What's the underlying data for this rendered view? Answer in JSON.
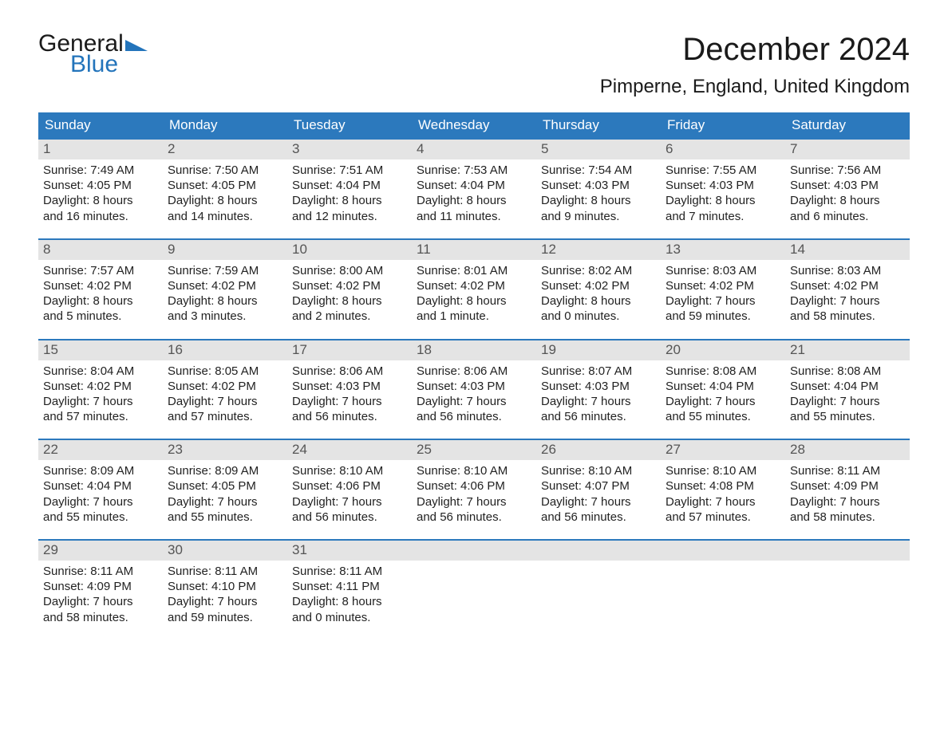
{
  "logo": {
    "line1": "General",
    "line2": "Blue"
  },
  "title": "December 2024",
  "location": "Pimperne, England, United Kingdom",
  "colors": {
    "header_bg": "#2c79bd",
    "header_text": "#ffffff",
    "daynum_bg": "#e4e4e4",
    "daynum_text": "#555555",
    "week_border": "#2c79bd",
    "body_text": "#222222",
    "page_bg": "#ffffff",
    "logo_blue": "#2374bb"
  },
  "weekdays": [
    "Sunday",
    "Monday",
    "Tuesday",
    "Wednesday",
    "Thursday",
    "Friday",
    "Saturday"
  ],
  "weeks": [
    [
      {
        "n": "1",
        "sr": "7:49 AM",
        "ss": "4:05 PM",
        "dl1": "Daylight: 8 hours",
        "dl2": "and 16 minutes."
      },
      {
        "n": "2",
        "sr": "7:50 AM",
        "ss": "4:05 PM",
        "dl1": "Daylight: 8 hours",
        "dl2": "and 14 minutes."
      },
      {
        "n": "3",
        "sr": "7:51 AM",
        "ss": "4:04 PM",
        "dl1": "Daylight: 8 hours",
        "dl2": "and 12 minutes."
      },
      {
        "n": "4",
        "sr": "7:53 AM",
        "ss": "4:04 PM",
        "dl1": "Daylight: 8 hours",
        "dl2": "and 11 minutes."
      },
      {
        "n": "5",
        "sr": "7:54 AM",
        "ss": "4:03 PM",
        "dl1": "Daylight: 8 hours",
        "dl2": "and 9 minutes."
      },
      {
        "n": "6",
        "sr": "7:55 AM",
        "ss": "4:03 PM",
        "dl1": "Daylight: 8 hours",
        "dl2": "and 7 minutes."
      },
      {
        "n": "7",
        "sr": "7:56 AM",
        "ss": "4:03 PM",
        "dl1": "Daylight: 8 hours",
        "dl2": "and 6 minutes."
      }
    ],
    [
      {
        "n": "8",
        "sr": "7:57 AM",
        "ss": "4:02 PM",
        "dl1": "Daylight: 8 hours",
        "dl2": "and 5 minutes."
      },
      {
        "n": "9",
        "sr": "7:59 AM",
        "ss": "4:02 PM",
        "dl1": "Daylight: 8 hours",
        "dl2": "and 3 minutes."
      },
      {
        "n": "10",
        "sr": "8:00 AM",
        "ss": "4:02 PM",
        "dl1": "Daylight: 8 hours",
        "dl2": "and 2 minutes."
      },
      {
        "n": "11",
        "sr": "8:01 AM",
        "ss": "4:02 PM",
        "dl1": "Daylight: 8 hours",
        "dl2": "and 1 minute."
      },
      {
        "n": "12",
        "sr": "8:02 AM",
        "ss": "4:02 PM",
        "dl1": "Daylight: 8 hours",
        "dl2": "and 0 minutes."
      },
      {
        "n": "13",
        "sr": "8:03 AM",
        "ss": "4:02 PM",
        "dl1": "Daylight: 7 hours",
        "dl2": "and 59 minutes."
      },
      {
        "n": "14",
        "sr": "8:03 AM",
        "ss": "4:02 PM",
        "dl1": "Daylight: 7 hours",
        "dl2": "and 58 minutes."
      }
    ],
    [
      {
        "n": "15",
        "sr": "8:04 AM",
        "ss": "4:02 PM",
        "dl1": "Daylight: 7 hours",
        "dl2": "and 57 minutes."
      },
      {
        "n": "16",
        "sr": "8:05 AM",
        "ss": "4:02 PM",
        "dl1": "Daylight: 7 hours",
        "dl2": "and 57 minutes."
      },
      {
        "n": "17",
        "sr": "8:06 AM",
        "ss": "4:03 PM",
        "dl1": "Daylight: 7 hours",
        "dl2": "and 56 minutes."
      },
      {
        "n": "18",
        "sr": "8:06 AM",
        "ss": "4:03 PM",
        "dl1": "Daylight: 7 hours",
        "dl2": "and 56 minutes."
      },
      {
        "n": "19",
        "sr": "8:07 AM",
        "ss": "4:03 PM",
        "dl1": "Daylight: 7 hours",
        "dl2": "and 56 minutes."
      },
      {
        "n": "20",
        "sr": "8:08 AM",
        "ss": "4:04 PM",
        "dl1": "Daylight: 7 hours",
        "dl2": "and 55 minutes."
      },
      {
        "n": "21",
        "sr": "8:08 AM",
        "ss": "4:04 PM",
        "dl1": "Daylight: 7 hours",
        "dl2": "and 55 minutes."
      }
    ],
    [
      {
        "n": "22",
        "sr": "8:09 AM",
        "ss": "4:04 PM",
        "dl1": "Daylight: 7 hours",
        "dl2": "and 55 minutes."
      },
      {
        "n": "23",
        "sr": "8:09 AM",
        "ss": "4:05 PM",
        "dl1": "Daylight: 7 hours",
        "dl2": "and 55 minutes."
      },
      {
        "n": "24",
        "sr": "8:10 AM",
        "ss": "4:06 PM",
        "dl1": "Daylight: 7 hours",
        "dl2": "and 56 minutes."
      },
      {
        "n": "25",
        "sr": "8:10 AM",
        "ss": "4:06 PM",
        "dl1": "Daylight: 7 hours",
        "dl2": "and 56 minutes."
      },
      {
        "n": "26",
        "sr": "8:10 AM",
        "ss": "4:07 PM",
        "dl1": "Daylight: 7 hours",
        "dl2": "and 56 minutes."
      },
      {
        "n": "27",
        "sr": "8:10 AM",
        "ss": "4:08 PM",
        "dl1": "Daylight: 7 hours",
        "dl2": "and 57 minutes."
      },
      {
        "n": "28",
        "sr": "8:11 AM",
        "ss": "4:09 PM",
        "dl1": "Daylight: 7 hours",
        "dl2": "and 58 minutes."
      }
    ],
    [
      {
        "n": "29",
        "sr": "8:11 AM",
        "ss": "4:09 PM",
        "dl1": "Daylight: 7 hours",
        "dl2": "and 58 minutes."
      },
      {
        "n": "30",
        "sr": "8:11 AM",
        "ss": "4:10 PM",
        "dl1": "Daylight: 7 hours",
        "dl2": "and 59 minutes."
      },
      {
        "n": "31",
        "sr": "8:11 AM",
        "ss": "4:11 PM",
        "dl1": "Daylight: 8 hours",
        "dl2": "and 0 minutes."
      },
      null,
      null,
      null,
      null
    ]
  ],
  "labels": {
    "sunrise": "Sunrise: ",
    "sunset": "Sunset: "
  }
}
